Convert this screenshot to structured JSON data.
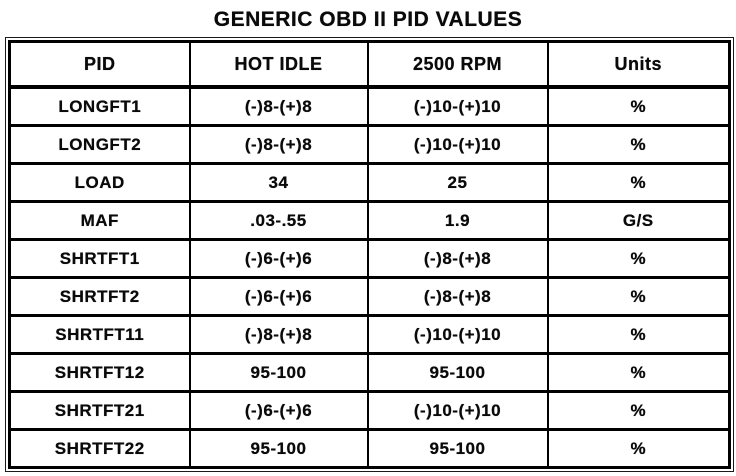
{
  "page": {
    "title": "GENERIC OBD II PID VALUES"
  },
  "colors": {
    "ink": "#0a0a0a",
    "paper": "#ffffff"
  },
  "table": {
    "columns": [
      "PID",
      "HOT IDLE",
      "2500 RPM",
      "Units"
    ],
    "rows": [
      {
        "pid": "LONGFT1",
        "hot_idle": "(-)8-(+)8",
        "rpm_2500": "(-)10-(+)10",
        "units": "%"
      },
      {
        "pid": "LONGFT2",
        "hot_idle": "(-)8-(+)8",
        "rpm_2500": "(-)10-(+)10",
        "units": "%"
      },
      {
        "pid": "LOAD",
        "hot_idle": "34",
        "rpm_2500": "25",
        "units": "%"
      },
      {
        "pid": "MAF",
        "hot_idle": ".03-.55",
        "rpm_2500": "1.9",
        "units": "G/S"
      },
      {
        "pid": "SHRTFT1",
        "hot_idle": "(-)6-(+)6",
        "rpm_2500": "(-)8-(+)8",
        "units": "%"
      },
      {
        "pid": "SHRTFT2",
        "hot_idle": "(-)6-(+)6",
        "rpm_2500": "(-)8-(+)8",
        "units": "%"
      },
      {
        "pid": "SHRTFT11",
        "hot_idle": "(-)8-(+)8",
        "rpm_2500": "(-)10-(+)10",
        "units": "%"
      },
      {
        "pid": "SHRTFT12",
        "hot_idle": "95-100",
        "rpm_2500": "95-100",
        "units": "%"
      },
      {
        "pid": "SHRTFT21",
        "hot_idle": "(-)6-(+)6",
        "rpm_2500": "(-)10-(+)10",
        "units": "%"
      },
      {
        "pid": "SHRTFT22",
        "hot_idle": "95-100",
        "rpm_2500": "95-100",
        "units": "%"
      }
    ]
  }
}
